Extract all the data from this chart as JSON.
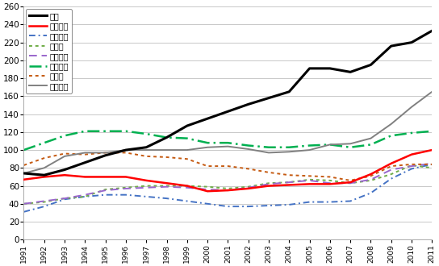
{
  "years": [
    1991,
    1992,
    1993,
    1994,
    1995,
    1996,
    1997,
    1998,
    1999,
    2000,
    2001,
    2002,
    2003,
    2004,
    2005,
    2006,
    2007,
    2008,
    2009,
    2010,
    2011
  ],
  "japan": [
    74,
    72,
    78,
    86,
    94,
    100,
    103,
    114,
    127,
    135,
    143,
    151,
    158,
    165,
    191,
    191,
    187,
    195,
    216,
    220,
    233
  ],
  "usa": [
    67,
    70,
    72,
    70,
    70,
    70,
    66,
    63,
    60,
    54,
    55,
    57,
    60,
    61,
    62,
    62,
    64,
    73,
    85,
    95,
    100
  ],
  "uk": [
    31,
    37,
    45,
    48,
    50,
    50,
    48,
    46,
    43,
    40,
    37,
    37,
    38,
    39,
    42,
    42,
    43,
    52,
    68,
    79,
    84
  ],
  "germany": [
    40,
    42,
    46,
    48,
    56,
    58,
    60,
    60,
    60,
    59,
    57,
    59,
    63,
    64,
    67,
    66,
    63,
    66,
    73,
    83,
    80
  ],
  "france": [
    40,
    43,
    46,
    50,
    55,
    57,
    58,
    59,
    58,
    56,
    55,
    58,
    62,
    64,
    66,
    63,
    63,
    67,
    78,
    82,
    85
  ],
  "italy": [
    100,
    108,
    116,
    121,
    121,
    121,
    118,
    114,
    113,
    108,
    108,
    105,
    103,
    103,
    105,
    106,
    103,
    106,
    116,
    119,
    121
  ],
  "canada": [
    83,
    91,
    96,
    95,
    97,
    97,
    93,
    92,
    90,
    82,
    82,
    79,
    75,
    72,
    71,
    70,
    66,
    71,
    82,
    84,
    84
  ],
  "greece": [
    74,
    80,
    93,
    97,
    97,
    100,
    100,
    100,
    100,
    103,
    104,
    101,
    97,
    98,
    100,
    106,
    107,
    113,
    129,
    148,
    165
  ],
  "legend_labels": [
    "日本",
    "アメリカ",
    "イギリス",
    "ドイツ",
    "フランス",
    "イタリア",
    "カナダ",
    "ギリシャ"
  ],
  "ylim": [
    0,
    260
  ],
  "yticks": [
    0,
    20,
    40,
    60,
    80,
    100,
    120,
    140,
    160,
    180,
    200,
    220,
    240,
    260
  ],
  "background_color": "#ffffff",
  "grid_color": "#c8c8c8",
  "japan_color": "#000000",
  "usa_color": "#FF0000",
  "uk_color": "#4472C4",
  "germany_color": "#70AD47",
  "france_color": "#9966CC",
  "italy_color": "#00B050",
  "canada_color": "#C55A11",
  "greece_color": "#808080"
}
